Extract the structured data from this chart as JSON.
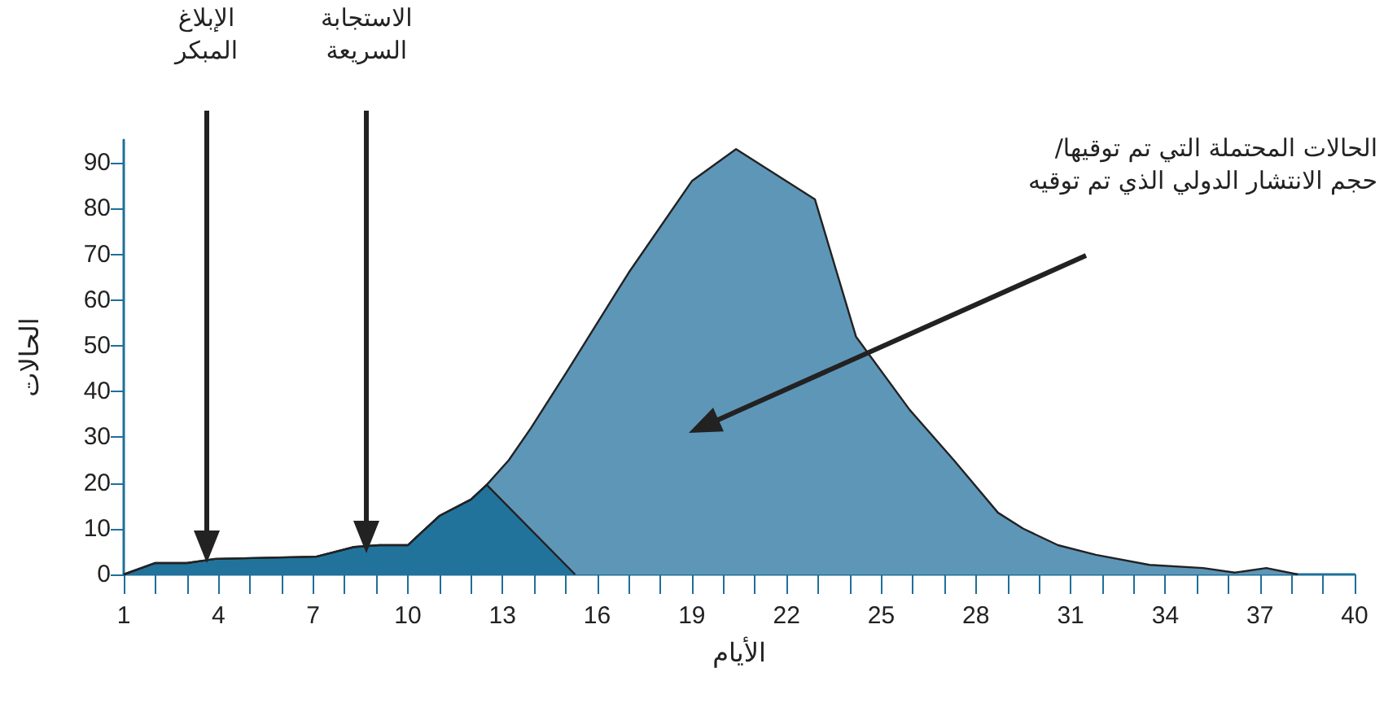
{
  "chart_data": {
    "type": "area",
    "xlabel": "الأيام",
    "ylabel": "الحالات",
    "series": [
      {
        "color": "#5e96b8",
        "x": [
          1,
          2,
          3,
          3.9,
          7.1,
          8.3,
          9.1,
          10,
          11,
          12,
          12.5,
          13.2,
          13.9,
          15.1,
          17,
          19,
          20.4,
          22.9,
          24.2,
          25.9,
          27.3,
          28.7,
          29.5,
          30.6,
          31.8,
          33.5,
          35.2,
          36.2,
          37.2,
          38.2
        ],
        "values": [
          0,
          2.5,
          2.5,
          3.4,
          3.9,
          6,
          6.4,
          6.4,
          12.8,
          16.4,
          19.6,
          25,
          32,
          45,
          66,
          86,
          93,
          82,
          52,
          36,
          25,
          13.5,
          10,
          6.4,
          4.3,
          2.1,
          1.4,
          0.4,
          1.4,
          0
        ]
      },
      {
        "color": "#22739c",
        "x": [
          1,
          2,
          3,
          3.9,
          7.1,
          8.3,
          9.1,
          10,
          11,
          12,
          12.5,
          15.3
        ],
        "values": [
          0,
          2.5,
          2.5,
          3.4,
          3.9,
          6,
          6.4,
          6.4,
          12.8,
          16.4,
          19.6,
          0
        ]
      }
    ],
    "xlim": [
      1,
      40
    ],
    "xticks": [
      1,
      {
        "value": 2,
        "label": null
      },
      {
        "value": 3,
        "label": null
      },
      4,
      {
        "value": 5,
        "label": null
      },
      {
        "value": 6,
        "label": null
      },
      7,
      {
        "value": 8,
        "label": null
      },
      {
        "value": 9,
        "label": null
      },
      10,
      {
        "value": 11,
        "label": null
      },
      {
        "value": 12,
        "label": null
      },
      13,
      {
        "value": 14,
        "label": null
      },
      {
        "value": 15,
        "label": null
      },
      16,
      {
        "value": 17,
        "label": null
      },
      {
        "value": 18,
        "label": null
      },
      19,
      {
        "value": 20,
        "label": null
      },
      {
        "value": 21,
        "label": null
      },
      22,
      {
        "value": 23,
        "label": null
      },
      {
        "value": 24,
        "label": null
      },
      25,
      {
        "value": 26,
        "label": null
      },
      {
        "value": 27,
        "label": null
      },
      28,
      {
        "value": 29,
        "label": null
      },
      {
        "value": 30,
        "label": null
      },
      31,
      {
        "value": 32,
        "label": null
      },
      {
        "value": 33,
        "label": null
      },
      34,
      {
        "value": 35,
        "label": null
      },
      {
        "value": 36,
        "label": null
      },
      37,
      {
        "value": 38,
        "label": null
      },
      {
        "value": 39,
        "label": null
      },
      40
    ],
    "ylim": [
      0,
      95
    ],
    "yticks": [
      0,
      10,
      20,
      30,
      40,
      50,
      60,
      70,
      80,
      90
    ],
    "grid": false,
    "marker": "none",
    "line_style": "solid",
    "annotations": [
      "الإبلاغ\nالمبكر",
      "الاستجابة\nالسريعة",
      "الحالات المحتملة التي تم توقيها/\nحجم الانتشار الدولي الذي تم توقيه"
    ]
  }
}
